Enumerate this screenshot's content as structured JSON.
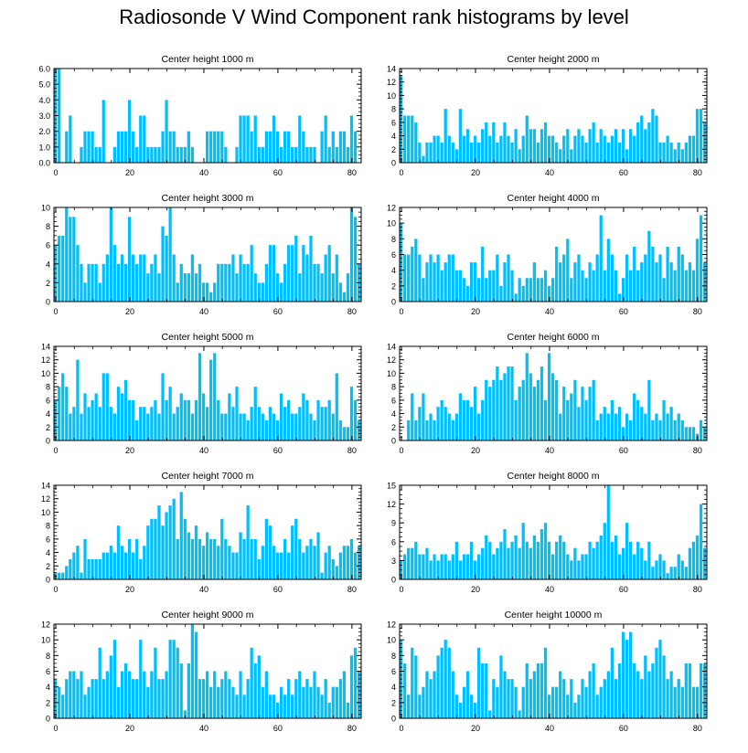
{
  "title": "Radiosonde V Wind Component rank histograms by level",
  "bar_color": "#00bfff",
  "chart_data": [
    {
      "type": "bar",
      "title": "Center height 1000 m",
      "ylim": [
        0,
        6
      ],
      "yticks": [
        0,
        1,
        2,
        3,
        4,
        5,
        6
      ],
      "ytick_labels": [
        "0.0",
        "1.0",
        "2.0",
        "3.0",
        "4.0",
        "5.0",
        "6.0"
      ],
      "xticks": [
        0,
        20,
        40,
        60,
        80
      ],
      "values": [
        6,
        6,
        0,
        2,
        3,
        0,
        0,
        1,
        2,
        2,
        2,
        1,
        1,
        4,
        0,
        0,
        1,
        2,
        2,
        2,
        4,
        2,
        1,
        3,
        3,
        1,
        1,
        1,
        1,
        2,
        4,
        2,
        2,
        1,
        1,
        1,
        2,
        1,
        0,
        0,
        0,
        2,
        2,
        2,
        2,
        2,
        1,
        0,
        0,
        1,
        3,
        3,
        3,
        2,
        3,
        1,
        1,
        2,
        2,
        3,
        2,
        1,
        2,
        2,
        1,
        1,
        3,
        2,
        1,
        1,
        1,
        0,
        2,
        3,
        1,
        2,
        1,
        2,
        2,
        1,
        3,
        2
      ]
    },
    {
      "type": "bar",
      "title": "Center height 2000 m",
      "ylim": [
        0,
        14
      ],
      "yticks": [
        0,
        2,
        4,
        6,
        8,
        10,
        12,
        14
      ],
      "ytick_labels": [
        "0",
        "2",
        "4",
        "6",
        "8",
        "10",
        "12",
        "14"
      ],
      "xticks": [
        0,
        20,
        40,
        60,
        80
      ],
      "values": [
        13,
        7,
        7,
        7,
        6,
        3,
        1,
        3,
        3,
        4,
        4,
        3,
        8,
        4,
        3,
        2,
        8,
        4,
        5,
        3,
        4,
        3,
        5,
        6,
        4,
        6,
        3,
        4,
        6,
        4,
        3,
        5,
        2,
        4,
        7,
        5,
        5,
        3,
        5,
        6,
        4,
        4,
        3,
        2,
        4,
        5,
        2,
        4,
        5,
        4,
        3,
        5,
        6,
        3,
        5,
        4,
        3,
        4,
        5,
        3,
        5,
        2,
        5,
        4,
        6,
        7,
        5,
        6,
        8,
        7,
        3,
        3,
        4,
        3,
        2,
        3,
        2,
        3,
        4,
        4,
        8,
        8,
        6
      ]
    },
    {
      "type": "bar",
      "title": "Center height 3000 m",
      "ylim": [
        0,
        10
      ],
      "yticks": [
        0,
        2,
        4,
        6,
        8,
        10
      ],
      "ytick_labels": [
        "0",
        "2",
        "4",
        "6",
        "8",
        "10"
      ],
      "xticks": [
        0,
        20,
        40,
        60,
        80
      ],
      "values": [
        6,
        7,
        7,
        10,
        9,
        9,
        6,
        4,
        2,
        4,
        4,
        4,
        2,
        4,
        5,
        10,
        6,
        4,
        5,
        4,
        9,
        5,
        4,
        5,
        5,
        3,
        4,
        5,
        3,
        8,
        7,
        10,
        5,
        2,
        4,
        3,
        3,
        5,
        3,
        4,
        2,
        2,
        1,
        2,
        4,
        4,
        4,
        4,
        5,
        3,
        5,
        4,
        4,
        6,
        3,
        2,
        2,
        4,
        6,
        6,
        3,
        2,
        4,
        6,
        6,
        7,
        3,
        6,
        5,
        7,
        4,
        4,
        3,
        5,
        6,
        3,
        5,
        2,
        1,
        3,
        10,
        9,
        4
      ]
    },
    {
      "type": "bar",
      "title": "Center height 4000 m",
      "ylim": [
        0,
        12
      ],
      "yticks": [
        0,
        2,
        4,
        6,
        8,
        10,
        12
      ],
      "ytick_labels": [
        "0",
        "2",
        "4",
        "6",
        "8",
        "10",
        "12"
      ],
      "xticks": [
        0,
        20,
        40,
        60,
        80
      ],
      "values": [
        10,
        6,
        6,
        7,
        8,
        6,
        3,
        5,
        6,
        5,
        6,
        4,
        5,
        6,
        6,
        4,
        4,
        3,
        2,
        5,
        5,
        3,
        7,
        3,
        4,
        4,
        6,
        2,
        5,
        6,
        4,
        1,
        3,
        2,
        3,
        3,
        5,
        3,
        3,
        4,
        2,
        3,
        7,
        5,
        6,
        8,
        3,
        5,
        6,
        4,
        3,
        5,
        4,
        6,
        11,
        4,
        8,
        6,
        4,
        1,
        3,
        6,
        4,
        7,
        4,
        5,
        6,
        9,
        7,
        5,
        6,
        3,
        7,
        5,
        4,
        7,
        6,
        4,
        5,
        4,
        8,
        11,
        5
      ]
    },
    {
      "type": "bar",
      "title": "Center height 5000 m",
      "ylim": [
        0,
        14
      ],
      "yticks": [
        0,
        2,
        4,
        6,
        8,
        10,
        12,
        14
      ],
      "ytick_labels": [
        "0",
        "2",
        "4",
        "6",
        "8",
        "10",
        "12",
        "14"
      ],
      "xticks": [
        0,
        20,
        40,
        60,
        80
      ],
      "values": [
        6,
        8,
        10,
        8,
        4,
        5,
        12,
        4,
        7,
        5,
        6,
        7,
        5,
        10,
        10,
        5,
        4,
        8,
        7,
        9,
        6,
        6,
        3,
        5,
        5,
        4,
        5,
        6,
        4,
        10,
        6,
        8,
        4,
        5,
        7,
        6,
        6,
        4,
        6,
        13,
        7,
        5,
        12,
        13,
        6,
        4,
        4,
        7,
        5,
        8,
        4,
        4,
        3,
        5,
        8,
        5,
        4,
        3,
        5,
        4,
        3,
        7,
        5,
        6,
        4,
        4,
        5,
        7,
        6,
        4,
        3,
        6,
        5,
        5,
        6,
        4,
        10,
        3,
        2,
        2,
        8,
        6,
        3
      ]
    },
    {
      "type": "bar",
      "title": "Center height 6000 m",
      "ylim": [
        0,
        14
      ],
      "yticks": [
        0,
        2,
        4,
        6,
        8,
        10,
        12,
        14
      ],
      "ytick_labels": [
        "0",
        "2",
        "4",
        "6",
        "8",
        "10",
        "12",
        "14"
      ],
      "xticks": [
        0,
        20,
        40,
        60,
        80
      ],
      "values": [
        0,
        0,
        3,
        7,
        3,
        5,
        7,
        3,
        4,
        3,
        5,
        6,
        5,
        4,
        3,
        4,
        7,
        6,
        6,
        5,
        8,
        4,
        6,
        9,
        8,
        9,
        11,
        9,
        10,
        11,
        11,
        6,
        8,
        9,
        13,
        10,
        8,
        9,
        11,
        6,
        13,
        10,
        9,
        4,
        8,
        6,
        7,
        9,
        5,
        8,
        6,
        8,
        9,
        3,
        4,
        5,
        4,
        6,
        4,
        5,
        2,
        4,
        3,
        7,
        6,
        5,
        4,
        9,
        3,
        4,
        3,
        6,
        4,
        5,
        3,
        4,
        3,
        2,
        2,
        2,
        1,
        3,
        2
      ]
    },
    {
      "type": "bar",
      "title": "Center height 7000 m",
      "ylim": [
        0,
        14
      ],
      "yticks": [
        0,
        2,
        4,
        6,
        8,
        10,
        12,
        14
      ],
      "ytick_labels": [
        "0",
        "2",
        "4",
        "6",
        "8",
        "10",
        "12",
        "14"
      ],
      "xticks": [
        0,
        20,
        40,
        60,
        80
      ],
      "values": [
        1,
        1,
        1,
        2,
        3,
        4,
        5,
        1,
        6,
        3,
        3,
        3,
        3,
        4,
        4,
        5,
        4,
        8,
        5,
        4,
        6,
        4,
        6,
        3,
        5,
        8,
        9,
        9,
        11,
        8,
        10,
        11,
        12,
        6,
        13,
        9,
        7,
        6,
        8,
        6,
        5,
        7,
        6,
        6,
        5,
        9,
        6,
        5,
        4,
        4,
        7,
        6,
        11,
        6,
        6,
        3,
        5,
        9,
        8,
        5,
        4,
        4,
        6,
        4,
        8,
        9,
        6,
        4,
        5,
        6,
        5,
        7,
        1,
        4,
        5,
        3,
        2,
        4,
        5,
        5,
        6,
        4,
        5
      ]
    },
    {
      "type": "bar",
      "title": "Center height 8000 m",
      "ylim": [
        0,
        15
      ],
      "yticks": [
        0,
        3,
        6,
        9,
        12,
        15
      ],
      "ytick_labels": [
        "0",
        "3",
        "6",
        "9",
        "12",
        "15"
      ],
      "xticks": [
        0,
        20,
        40,
        60,
        80
      ],
      "values": [
        3,
        4,
        5,
        5,
        6,
        4,
        4,
        5,
        3,
        4,
        3,
        4,
        4,
        3,
        4,
        6,
        3,
        4,
        4,
        6,
        3,
        4,
        5,
        7,
        6,
        4,
        5,
        6,
        8,
        5,
        6,
        7,
        5,
        9,
        6,
        5,
        7,
        6,
        8,
        9,
        6,
        4,
        6,
        7,
        6,
        4,
        3,
        5,
        3,
        4,
        4,
        6,
        5,
        6,
        7,
        9,
        15,
        6,
        7,
        4,
        5,
        9,
        6,
        4,
        6,
        5,
        3,
        6,
        2,
        3,
        4,
        3,
        1,
        2,
        2,
        4,
        3,
        2,
        5,
        6,
        7,
        12,
        5
      ]
    },
    {
      "type": "bar",
      "title": "Center height 9000 m",
      "ylim": [
        0,
        12
      ],
      "yticks": [
        0,
        2,
        4,
        6,
        8,
        10,
        12
      ],
      "ytick_labels": [
        "0",
        "2",
        "4",
        "6",
        "8",
        "10",
        "12"
      ],
      "xticks": [
        0,
        20,
        40,
        60,
        80
      ],
      "values": [
        5,
        4,
        3,
        5,
        6,
        6,
        5,
        6,
        3,
        4,
        5,
        5,
        9,
        5,
        6,
        8,
        10,
        4,
        6,
        7,
        6,
        5,
        5,
        10,
        6,
        4,
        6,
        9,
        5,
        5,
        6,
        10,
        10,
        9,
        7,
        1,
        7,
        12,
        11,
        5,
        5,
        6,
        4,
        6,
        4,
        5,
        6,
        5,
        4,
        3,
        6,
        3,
        5,
        9,
        7,
        8,
        4,
        6,
        3,
        3,
        2,
        4,
        3,
        5,
        3,
        5,
        6,
        4,
        5,
        4,
        6,
        4,
        3,
        5,
        2,
        4,
        4,
        5,
        6,
        2,
        8,
        9,
        6
      ]
    },
    {
      "type": "bar",
      "title": "Center height 10000 m",
      "ylim": [
        0,
        12
      ],
      "yticks": [
        0,
        2,
        4,
        6,
        8,
        10,
        12
      ],
      "ytick_labels": [
        "0",
        "2",
        "4",
        "6",
        "8",
        "10",
        "12"
      ],
      "xticks": [
        0,
        20,
        40,
        60,
        80
      ],
      "values": [
        10,
        7,
        3,
        9,
        8,
        3,
        4,
        6,
        5,
        6,
        8,
        9,
        10,
        9,
        6,
        3,
        2,
        4,
        6,
        3,
        2,
        9,
        7,
        7,
        1,
        5,
        4,
        8,
        6,
        5,
        5,
        4,
        1,
        4,
        7,
        5,
        6,
        7,
        7,
        9,
        3,
        4,
        4,
        6,
        5,
        3,
        5,
        2,
        3,
        5,
        4,
        6,
        7,
        3,
        4,
        5,
        6,
        9,
        5,
        7,
        11,
        10,
        11,
        7,
        6,
        5,
        8,
        6,
        7,
        9,
        10,
        8,
        5,
        6,
        4,
        5,
        4,
        7,
        7,
        4,
        4,
        7,
        7
      ]
    }
  ]
}
